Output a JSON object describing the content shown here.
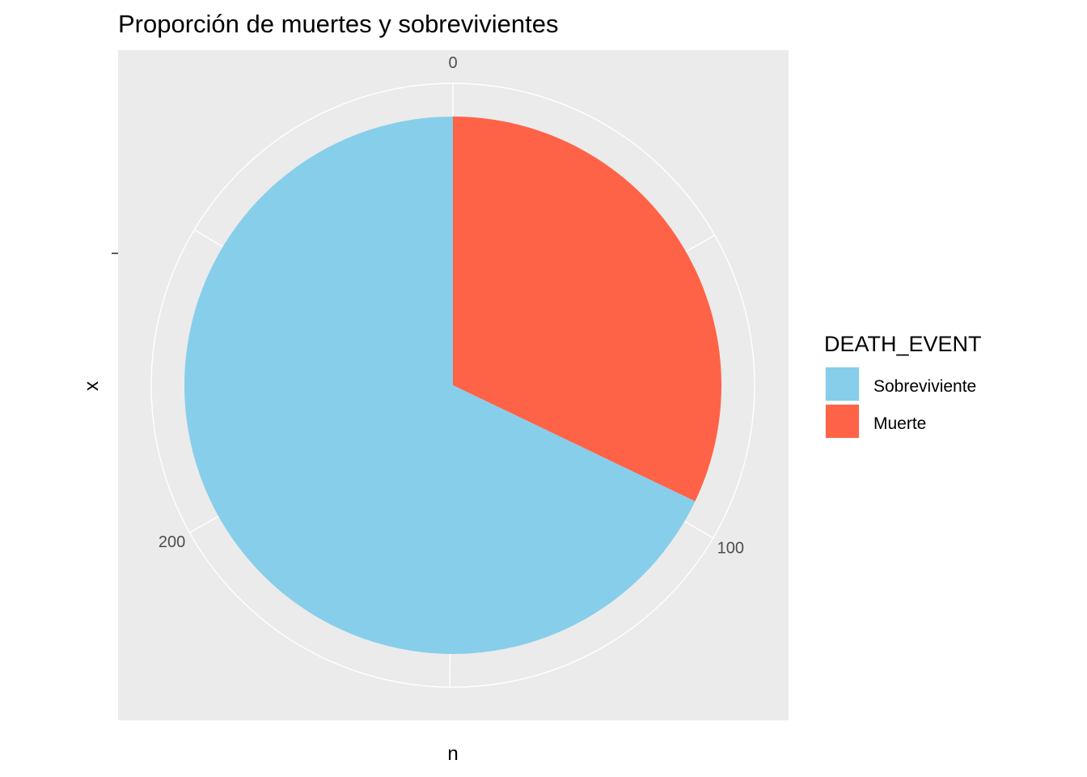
{
  "chart_data": {
    "type": "pie",
    "title": "Proporción de muertes y sobrevivientes",
    "xlabel": "n",
    "ylabel": "x",
    "theta_ticks": [
      {
        "value": 0,
        "label": "0"
      },
      {
        "value": 100,
        "label": "100"
      },
      {
        "value": 200,
        "label": "200"
      }
    ],
    "theta_range": [
      0,
      299
    ],
    "slices": [
      {
        "label": "Muerte",
        "value": 96,
        "color": "#FF6347"
      },
      {
        "label": "Sobreviviente",
        "value": 203,
        "color": "#87CEEB"
      }
    ],
    "legend": {
      "title": "DEATH_EVENT",
      "position": "right",
      "items": [
        {
          "label": "Sobreviviente",
          "color": "#87CEEB"
        },
        {
          "label": "Muerte",
          "color": "#FF6347"
        }
      ]
    },
    "panel_background": "#EBEBEB",
    "grid_color": "#FFFFFF",
    "grid": true
  }
}
